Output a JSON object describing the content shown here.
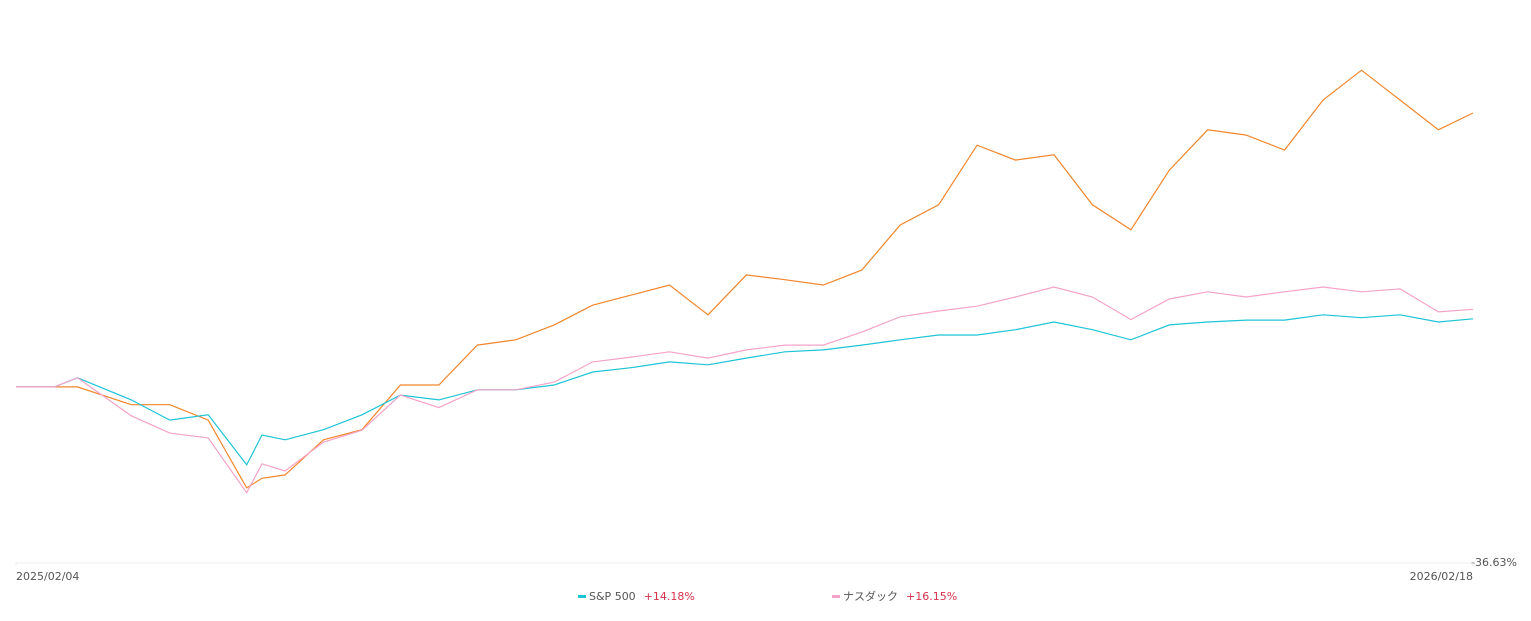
{
  "chart_data": {
    "type": "line",
    "x": [
      0,
      10,
      16,
      30,
      40,
      50,
      60,
      64,
      70,
      80,
      90,
      100,
      110,
      120,
      130,
      140,
      150,
      160,
      170,
      180,
      190,
      200,
      210,
      220,
      230,
      240,
      250,
      260,
      270,
      280,
      290,
      300,
      310,
      320,
      330,
      340,
      350,
      360,
      370,
      379
    ],
    "xlim": [
      0,
      379
    ],
    "xticks": [
      {
        "value": 0,
        "label": "2025/02/04"
      },
      {
        "value": 379,
        "label": "2026/02/18"
      }
    ],
    "ylim": [
      -36.63,
      80.5
    ],
    "yticks": [
      {
        "value": -36.63,
        "label": "-36.63%"
      }
    ],
    "series": [
      {
        "color": "#f0862c",
        "values": [
          0,
          0,
          0,
          -3.7,
          -3.7,
          -6.9,
          -21,
          -19,
          -18.3,
          -11,
          -8.9,
          0.4,
          0.4,
          8.7,
          9.8,
          12.9,
          17,
          19.1,
          21.2,
          15,
          23.3,
          22.3,
          21.2,
          24.3,
          33.7,
          37.9,
          50.3,
          47.2,
          48.3,
          37.9,
          32.7,
          45.1,
          53.5,
          52.4,
          49.3,
          59.7,
          65.9,
          59.7,
          53.5,
          57
        ]
      },
      {
        "name": "S&P 500",
        "color": "#1ec4d6",
        "legend_value": "+14.18%",
        "values": [
          0,
          0,
          1.9,
          -2.7,
          -6.9,
          -5.8,
          -16.2,
          -10,
          -11,
          -8.9,
          -5.8,
          -1.7,
          -2.7,
          -0.6,
          -0.6,
          0.4,
          3.1,
          4,
          5.2,
          4.6,
          6,
          7.3,
          7.7,
          8.7,
          9.8,
          10.8,
          10.8,
          11.9,
          13.5,
          11.9,
          9.8,
          12.9,
          13.5,
          13.9,
          13.9,
          15,
          14.4,
          15,
          13.5,
          14.18
        ]
      },
      {
        "name": "ナスダック",
        "color": "#f4a3c8",
        "legend_value": "+16.15%",
        "values": [
          0,
          0,
          1.9,
          -6,
          -9.6,
          -10.6,
          -22,
          -16,
          -17.5,
          -11.5,
          -9,
          -1.7,
          -4.3,
          -0.6,
          -0.6,
          1,
          5.2,
          6.2,
          7.3,
          6,
          7.7,
          8.7,
          8.7,
          11.4,
          14.6,
          15.8,
          16.8,
          18.7,
          20.8,
          18.7,
          14,
          18.3,
          19.8,
          18.7,
          19.8,
          20.8,
          19.8,
          20.4,
          15.6,
          16.15
        ]
      }
    ]
  }
}
